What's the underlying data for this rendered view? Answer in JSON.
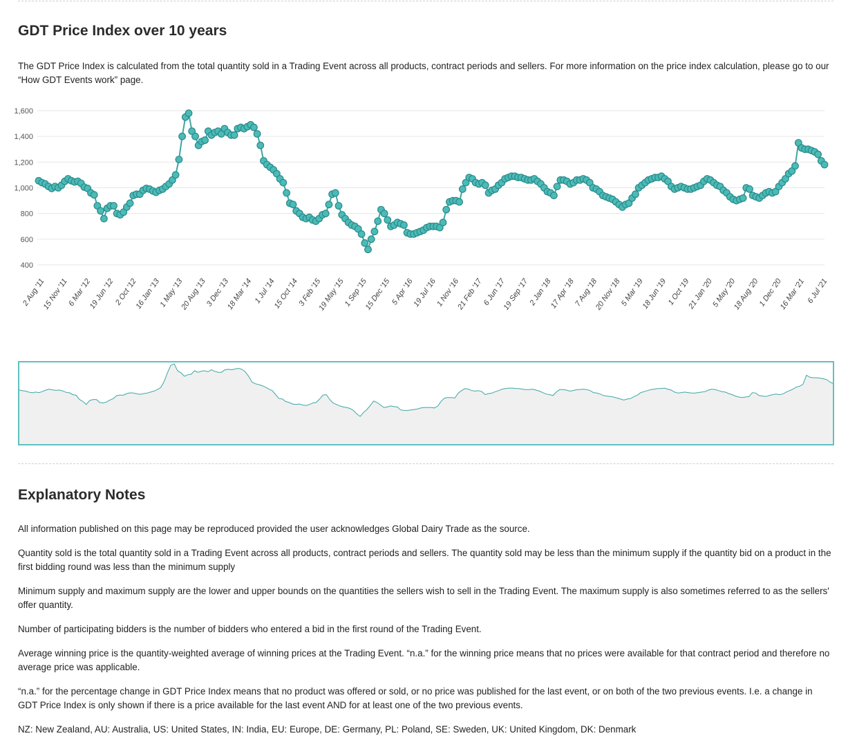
{
  "page": {
    "title": "GDT Price Index over 10 years",
    "intro": "The GDT Price Index is calculated from the total quantity sold in a Trading Event across all products, contract periods and sellers. For more information on the price index calculation, please go to our “How GDT Events work” page."
  },
  "colors": {
    "series": "#3aa7a5",
    "marker_fill": "#4bbbb8",
    "marker_stroke": "#2a8a88",
    "grid": "#e6e6e6",
    "navigator_fill": "#f0f0f0",
    "navigator_border": "#5fc1be"
  },
  "chart_data": {
    "type": "line",
    "title": "GDT Price Index over 10 years",
    "xlabel": "",
    "ylabel": "",
    "ylim": [
      400,
      1600
    ],
    "yticks": [
      400,
      600,
      800,
      1000,
      1200,
      1400,
      1600
    ],
    "grid": true,
    "legend": "none",
    "x_tick_labels": [
      "2 Aug '11",
      "15 Nov '11",
      "6 Mar '12",
      "19 Jun '12",
      "2 Oct '12",
      "16 Jan '13",
      "1 May '13",
      "20 Aug '13",
      "3 Dec '13",
      "18 Mar '14",
      "1 Jul '14",
      "15 Oct '14",
      "3 Feb '15",
      "19 May '15",
      "1 Sep '15",
      "15 Dec '15",
      "5 Apr '16",
      "19 Jul '16",
      "1 Nov '16",
      "21 Feb '17",
      "6 Jun '17",
      "19 Sep '17",
      "2 Jan '18",
      "17 Apr '18",
      "7 Aug '18",
      "20 Nov '18",
      "5 Mar '19",
      "18 Jun '19",
      "1 Oct '19",
      "21 Jan '20",
      "5 May '20",
      "18 Aug '20",
      "1 Dec '20",
      "16 Mar '21",
      "6 Jul '21"
    ],
    "series": [
      {
        "values": [
          1055,
          1040,
          1030,
          1010,
          995,
          1010,
          1000,
          1020,
          1050,
          1070,
          1055,
          1045,
          1050,
          1035,
          1005,
          995,
          960,
          945,
          860,
          820,
          760,
          840,
          860,
          860,
          800,
          790,
          810,
          850,
          880,
          940,
          950,
          950,
          980,
          995,
          990,
          975,
          965,
          980,
          990,
          1010,
          1030,
          1060,
          1100,
          1220,
          1400,
          1550,
          1580,
          1440,
          1400,
          1330,
          1360,
          1370,
          1440,
          1410,
          1430,
          1440,
          1420,
          1460,
          1430,
          1410,
          1410,
          1460,
          1470,
          1460,
          1475,
          1490,
          1470,
          1420,
          1330,
          1210,
          1180,
          1160,
          1140,
          1110,
          1070,
          1040,
          960,
          880,
          870,
          820,
          800,
          770,
          760,
          770,
          750,
          740,
          760,
          790,
          800,
          870,
          950,
          960,
          860,
          790,
          760,
          730,
          710,
          700,
          680,
          640,
          570,
          520,
          600,
          660,
          740,
          830,
          800,
          750,
          700,
          710,
          730,
          720,
          710,
          650,
          640,
          640,
          650,
          660,
          670,
          690,
          700,
          700,
          700,
          690,
          730,
          830,
          890,
          900,
          900,
          890,
          990,
          1040,
          1080,
          1070,
          1040,
          1030,
          1040,
          1020,
          960,
          980,
          990,
          1020,
          1040,
          1070,
          1080,
          1090,
          1090,
          1080,
          1080,
          1070,
          1060,
          1060,
          1070,
          1050,
          1030,
          1000,
          970,
          960,
          940,
          1010,
          1060,
          1060,
          1050,
          1030,
          1040,
          1060,
          1060,
          1070,
          1060,
          1040,
          1000,
          990,
          970,
          940,
          930,
          920,
          910,
          890,
          870,
          850,
          870,
          880,
          920,
          950,
          1000,
          1020,
          1040,
          1060,
          1070,
          1080,
          1080,
          1090,
          1070,
          1050,
          1010,
          990,
          1000,
          1010,
          1000,
          990,
          990,
          1000,
          1010,
          1020,
          1050,
          1070,
          1060,
          1040,
          1020,
          1010,
          980,
          960,
          930,
          910,
          900,
          910,
          920,
          1000,
          990,
          940,
          930,
          920,
          940,
          960,
          970,
          960,
          970,
          1010,
          1040,
          1070,
          1110,
          1130,
          1170,
          1350,
          1310,
          1300,
          1300,
          1290,
          1280,
          1260,
          1210,
          1180
        ]
      }
    ]
  },
  "notes": {
    "title": "Explanatory Notes",
    "paragraphs": [
      "All information published on this page may be reproduced provided the user acknowledges Global Dairy Trade as the source.",
      "Quantity sold is the total quantity sold in a Trading Event across all products, contract periods and sellers. The quantity sold may be less than the minimum supply if the quantity bid on a product in the first bidding round was less than the minimum supply",
      "Minimum supply and maximum supply are the lower and upper bounds on the quantities the sellers wish to sell in the Trading Event. The maximum supply is also sometimes referred to as the sellers' offer quantity.",
      "Number of participating bidders is the number of bidders who entered a bid in the first round of the Trading Event.",
      "Average winning price is the quantity-weighted average of winning prices at the Trading Event.  “n.a.” for the winning price means that no prices were available for that contract period and therefore no average price was applicable.",
      "“n.a.” for the percentage change in GDT Price Index means that no product was offered or sold, or no price was published for the last event, or on both of the two previous events.  I.e. a change in GDT Price Index is only shown if there is a price available for the last event AND for at least one of the two previous events.",
      "NZ: New Zealand, AU: Australia, US: United States, IN: India, EU: Europe, DE: Germany, PL: Poland, SE: Sweden, UK: United Kingdom, DK: Denmark"
    ]
  }
}
